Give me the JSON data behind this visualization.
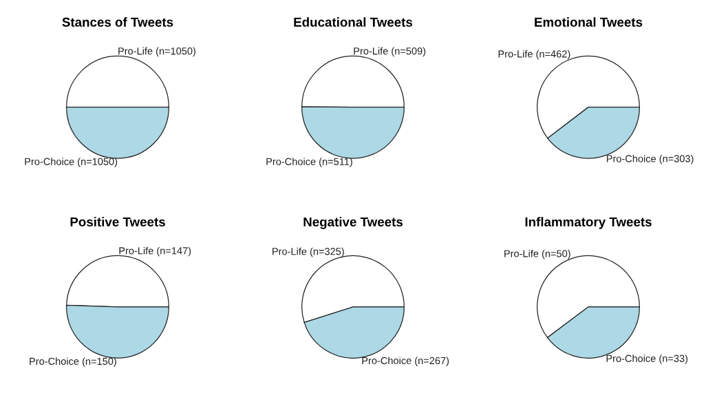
{
  "chart_data": [
    {
      "type": "pie",
      "title": "Stances of Tweets",
      "categories": [
        "Pro-Life (n=1050)",
        "Pro-Choice (n=1050)"
      ],
      "values": [
        1050,
        1050
      ],
      "colors": [
        "#ffffff",
        "#add8e6"
      ]
    },
    {
      "type": "pie",
      "title": "Educational Tweets",
      "categories": [
        "Pro-Life (n=509)",
        "Pro-Choice (n=511)"
      ],
      "values": [
        509,
        511
      ],
      "colors": [
        "#ffffff",
        "#add8e6"
      ]
    },
    {
      "type": "pie",
      "title": "Emotional Tweets",
      "categories": [
        "Pro-Life (n=462)",
        "Pro-Choice (n=303)"
      ],
      "values": [
        462,
        303
      ],
      "colors": [
        "#ffffff",
        "#add8e6"
      ]
    },
    {
      "type": "pie",
      "title": "Positive Tweets",
      "categories": [
        "Pro-Life (n=147)",
        "Pro-Choice (n=150)"
      ],
      "values": [
        147,
        150
      ],
      "colors": [
        "#ffffff",
        "#add8e6"
      ]
    },
    {
      "type": "pie",
      "title": "Negative Tweets",
      "categories": [
        "Pro-Life (n=325)",
        "Pro-Choice (n=267)"
      ],
      "values": [
        325,
        267
      ],
      "colors": [
        "#ffffff",
        "#add8e6"
      ]
    },
    {
      "type": "pie",
      "title": "Inflammatory Tweets",
      "categories": [
        "Pro-Life (n=50)",
        "Pro-Choice (n=33)"
      ],
      "values": [
        50,
        33
      ],
      "colors": [
        "#ffffff",
        "#add8e6"
      ]
    }
  ]
}
